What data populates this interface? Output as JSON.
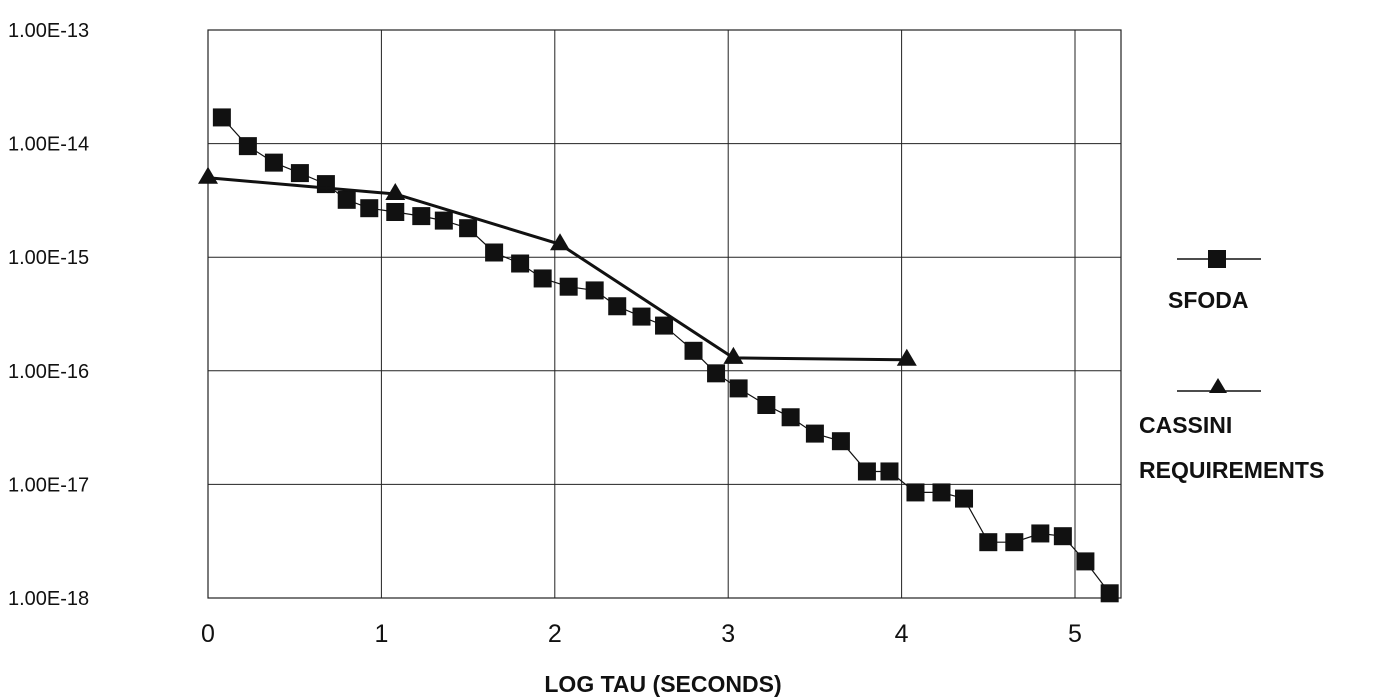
{
  "chart_data": {
    "type": "line",
    "title": "",
    "xlabel": "LOG TAU (SECONDS)",
    "ylabel": "",
    "y_scale": "log",
    "xlim": [
      0,
      5.2
    ],
    "ylim": [
      1e-18,
      1e-13
    ],
    "grid": true,
    "x_ticks": [
      0,
      1,
      2,
      3,
      4,
      5
    ],
    "x_tick_labels": [
      "0",
      "1",
      "2",
      "3",
      "4",
      "5"
    ],
    "y_ticks": [
      1e-13,
      1e-14,
      1e-15,
      1e-16,
      1e-17,
      1e-18
    ],
    "y_tick_labels": [
      "1.00E-13",
      "1.00E-14",
      "1.00E-15",
      "1.00E-16",
      "1.00E-17",
      "1.00E-18"
    ],
    "legend_position": "right",
    "series": [
      {
        "name": "SFODA",
        "marker": "square",
        "color": "#111111",
        "x": [
          0.08,
          0.23,
          0.38,
          0.53,
          0.68,
          0.8,
          0.93,
          1.08,
          1.23,
          1.36,
          1.5,
          1.65,
          1.8,
          1.93,
          2.08,
          2.23,
          2.36,
          2.5,
          2.63,
          2.8,
          2.93,
          3.06,
          3.22,
          3.36,
          3.5,
          3.65,
          3.8,
          3.93,
          4.08,
          4.23,
          4.36,
          4.5,
          4.65,
          4.8,
          4.93,
          5.06,
          5.2
        ],
        "y": [
          1.7e-14,
          9.5e-15,
          6.8e-15,
          5.5e-15,
          4.4e-15,
          3.2e-15,
          2.7e-15,
          2.5e-15,
          2.3e-15,
          2.1e-15,
          1.8e-15,
          1.1e-15,
          8.8e-16,
          6.5e-16,
          5.5e-16,
          5.1e-16,
          3.7e-16,
          3e-16,
          2.5e-16,
          1.5e-16,
          9.5e-17,
          7e-17,
          5e-17,
          3.9e-17,
          2.8e-17,
          2.4e-17,
          1.3e-17,
          1.3e-17,
          8.5e-18,
          8.5e-18,
          7.5e-18,
          3.1e-18,
          3.1e-18,
          3.7e-18,
          3.5e-18,
          2.1e-18,
          1.1e-18
        ]
      },
      {
        "name": "CASSINI REQUIREMENTS",
        "marker": "triangle",
        "color": "#111111",
        "x": [
          0,
          1.08,
          2.03,
          3.03,
          4.03
        ],
        "y": [
          5e-15,
          3.6e-15,
          1.3e-15,
          1.3e-16,
          1.25e-16
        ]
      }
    ]
  },
  "legend": {
    "sfoda_label": "SFODA",
    "cassini_label_line1": "CASSINI",
    "cassini_label_line2": "REQUIREMENTS"
  }
}
